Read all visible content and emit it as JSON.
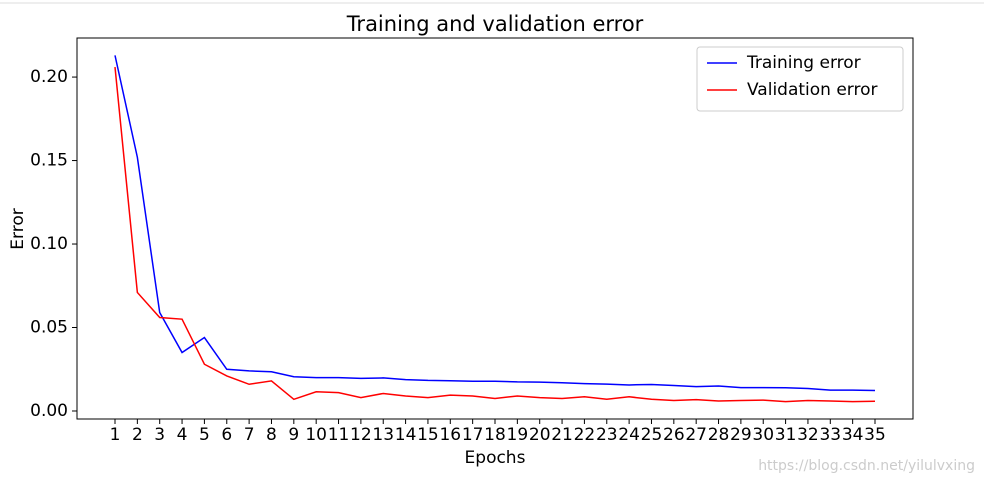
{
  "chart_data": {
    "type": "line",
    "title": "Training and validation error",
    "x_label": "Epochs",
    "y_label": "Error",
    "x": [
      1,
      2,
      3,
      4,
      5,
      6,
      7,
      8,
      9,
      10,
      11,
      12,
      13,
      14,
      15,
      16,
      17,
      18,
      19,
      20,
      21,
      22,
      23,
      24,
      25,
      26,
      27,
      28,
      29,
      30,
      31,
      32,
      33,
      34,
      35
    ],
    "series": [
      {
        "name": "Training error",
        "color": "#0000ff",
        "values": [
          0.213,
          0.152,
          0.059,
          0.035,
          0.044,
          0.025,
          0.024,
          0.0235,
          0.0205,
          0.02,
          0.02,
          0.0195,
          0.0198,
          0.0188,
          0.0183,
          0.0181,
          0.0178,
          0.0178,
          0.0174,
          0.0173,
          0.0169,
          0.0164,
          0.0161,
          0.0156,
          0.0159,
          0.0153,
          0.0146,
          0.015,
          0.014,
          0.014,
          0.0139,
          0.0135,
          0.0125,
          0.0125,
          0.0123
        ]
      },
      {
        "name": "Validation error",
        "color": "#ff0000",
        "values": [
          0.206,
          0.071,
          0.056,
          0.055,
          0.028,
          0.021,
          0.016,
          0.018,
          0.007,
          0.0115,
          0.011,
          0.008,
          0.0105,
          0.009,
          0.008,
          0.0095,
          0.009,
          0.0075,
          0.009,
          0.008,
          0.0075,
          0.0085,
          0.007,
          0.0085,
          0.007,
          0.0063,
          0.0068,
          0.006,
          0.0063,
          0.0065,
          0.0056,
          0.0063,
          0.006,
          0.0056,
          0.0058
        ]
      }
    ],
    "xlim": [
      -0.7,
      36.7
    ],
    "xticks": [
      1,
      2,
      3,
      4,
      5,
      6,
      7,
      8,
      9,
      10,
      11,
      12,
      13,
      14,
      15,
      16,
      17,
      18,
      19,
      20,
      21,
      22,
      23,
      24,
      25,
      26,
      27,
      28,
      29,
      30,
      31,
      32,
      33,
      34,
      35
    ],
    "ylim": [
      -0.0048,
      0.2234
    ],
    "yticks": [
      {
        "value": 0,
        "label": "0.00"
      },
      {
        "value": 0.05,
        "label": "0.05"
      },
      {
        "value": 0.1,
        "label": "0.10"
      },
      {
        "value": 0.15,
        "label": "0.15"
      },
      {
        "value": 0.2,
        "label": "0.20"
      }
    ],
    "legend": "upper right",
    "watermark": "https://blog.csdn.net/yilulvxing"
  }
}
